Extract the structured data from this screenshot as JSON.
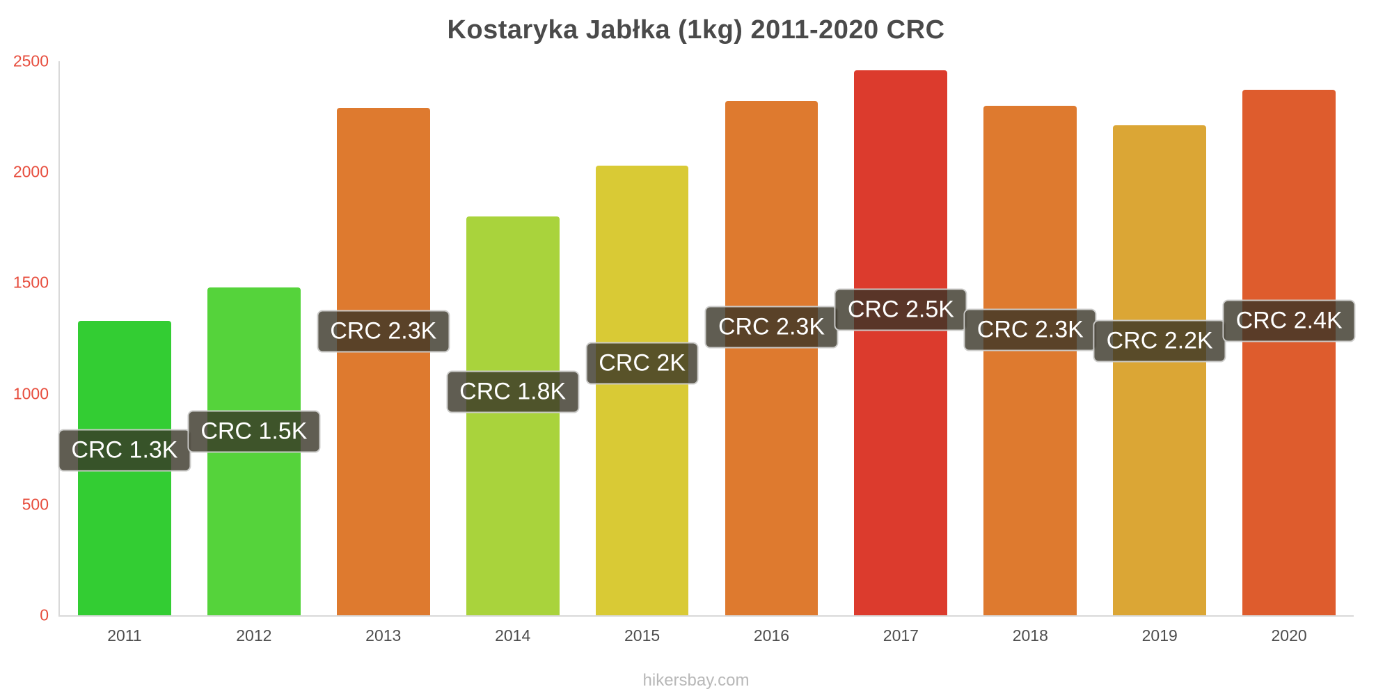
{
  "title": "Kostaryka Jabłka (1kg) 2011-2020 CRC",
  "footer": "hikersbay.com",
  "chart_data": {
    "type": "bar",
    "title": "Kostaryka Jabłka (1kg) 2011-2020 CRC",
    "categories": [
      "2011",
      "2012",
      "2013",
      "2014",
      "2015",
      "2016",
      "2017",
      "2018",
      "2019",
      "2020"
    ],
    "values": [
      1330,
      1480,
      2290,
      1800,
      2030,
      2320,
      2460,
      2300,
      2210,
      2370
    ],
    "bar_labels": [
      "CRC 1.3K",
      "CRC 1.5K",
      "CRC 2.3K",
      "CRC 1.8K",
      "CRC 2K",
      "CRC 2.3K",
      "CRC 2.5K",
      "CRC 2.3K",
      "CRC 2.2K",
      "CRC 2.4K"
    ],
    "bar_colors": [
      "#33cd33",
      "#55d33b",
      "#de7a2f",
      "#a9d33c",
      "#d9ca35",
      "#de7a2f",
      "#dc3b2d",
      "#de7a2f",
      "#dba635",
      "#de5c2d"
    ],
    "xlabel": "",
    "ylabel": "",
    "ylim": [
      0,
      2500
    ],
    "yticks": [
      0,
      500,
      1000,
      1500,
      2000,
      2500
    ],
    "grid": false,
    "legend": false,
    "label_position_fraction_of_bar_height": 0.56,
    "colors": {
      "background": "#ffffff",
      "title_text": "#4a4a4a",
      "y_tick_text": "#e74c3c",
      "x_tick_text": "#4d4d4d",
      "axis_line": "#d9d9d9",
      "label_box_bg": "rgba(56,52,39,0.8)",
      "label_box_text": "#ffffff",
      "footer_text": "#b8b8b8"
    }
  }
}
